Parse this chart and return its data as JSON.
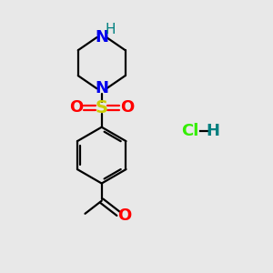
{
  "bg_color": "#e8e8e8",
  "bond_color": "#000000",
  "N_color": "#0000ee",
  "H_color": "#008080",
  "S_color": "#cccc00",
  "O_color": "#ff0000",
  "Cl_color": "#33ee00",
  "line_width": 1.6,
  "figsize": [
    3.0,
    3.0
  ],
  "dpi": 100,
  "xlim": [
    0,
    10
  ],
  "ylim": [
    0,
    10
  ]
}
